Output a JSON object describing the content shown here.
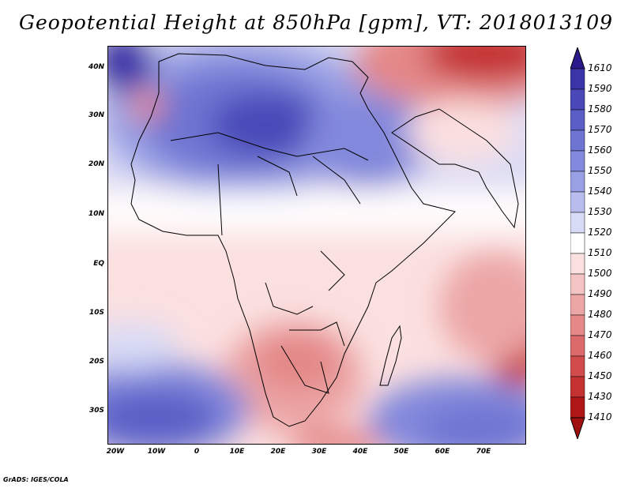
{
  "title": "Geopotential Height at 850hPa [gpm], VT: 2018013109",
  "footer": "GrADS: IGES/COLA",
  "map": {
    "lat_labels": [
      "40N",
      "30N",
      "20N",
      "10N",
      "EQ",
      "10S",
      "20S",
      "30S"
    ],
    "lon_labels": [
      "20W",
      "10W",
      "0",
      "10E",
      "20E",
      "30E",
      "40E",
      "50E",
      "60E",
      "70E"
    ]
  },
  "colorbar": {
    "levels": [
      "1610",
      "1590",
      "1580",
      "1570",
      "1560",
      "1550",
      "1540",
      "1530",
      "1520",
      "1510",
      "1500",
      "1490",
      "1480",
      "1470",
      "1460",
      "1450",
      "1430",
      "1410"
    ],
    "colors": [
      "#2a1a8c",
      "#3b33a8",
      "#4a48b8",
      "#5a5ec6",
      "#6e74d2",
      "#8288dc",
      "#9aa0e4",
      "#b8bdee",
      "#d8dbf6",
      "#ffffff",
      "#fbe0e0",
      "#f4c4c4",
      "#eca6a6",
      "#e48888",
      "#dc6a6a",
      "#d24c4c",
      "#c43232",
      "#b01818"
    ]
  }
}
